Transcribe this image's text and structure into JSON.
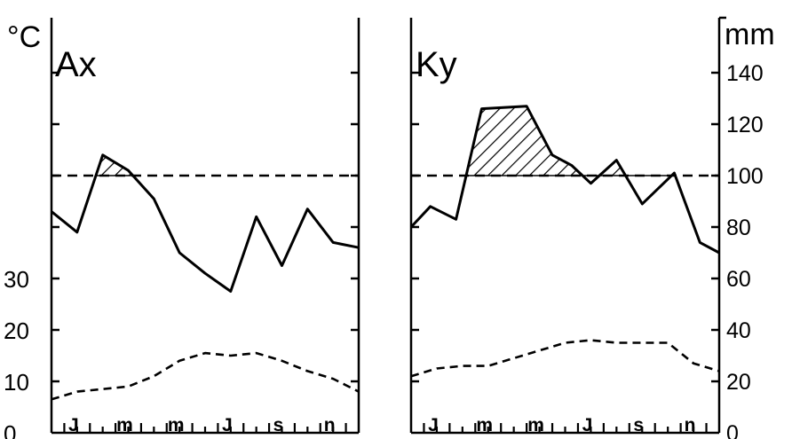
{
  "chart_data": [
    {
      "type": "line",
      "title": "Ax",
      "y_left_unit": "°C",
      "y_left_ticks": [
        "0",
        "10",
        "20",
        "30"
      ],
      "y_left_range": [
        0,
        70
      ],
      "y_right_range": [
        0,
        140
      ],
      "x_ticks": [
        "J",
        "m",
        "m",
        "J",
        "s",
        "n"
      ],
      "x_range": [
        0,
        24
      ],
      "reference_line": 100,
      "series": [
        {
          "style": "solid",
          "axis": "mm",
          "x": [
            0,
            2,
            4,
            6,
            8,
            10,
            12,
            14,
            16,
            18,
            20,
            22,
            24
          ],
          "y": [
            86,
            78,
            108,
            102,
            91,
            70,
            62,
            55,
            84,
            65,
            87,
            74,
            72
          ]
        },
        {
          "style": "dashed",
          "axis": "°C",
          "x": [
            0,
            2,
            4,
            6,
            8,
            10,
            12,
            14,
            16,
            18,
            20,
            22,
            24
          ],
          "y": [
            6.5,
            8,
            8.5,
            9,
            11,
            14,
            15.5,
            15,
            15.5,
            14,
            12,
            10.5,
            8
          ]
        }
      ]
    },
    {
      "type": "line",
      "title": "Ky",
      "y_right_unit": "mm",
      "y_right_ticks": [
        "0",
        "20",
        "40",
        "60",
        "80",
        "100",
        "120",
        "140"
      ],
      "y_left_range": [
        0,
        70
      ],
      "y_right_range": [
        0,
        140
      ],
      "x_ticks": [
        "J",
        "m",
        "m",
        "J",
        "s",
        "n"
      ],
      "x_range": [
        0,
        24
      ],
      "reference_line": 100,
      "series": [
        {
          "style": "solid",
          "axis": "mm",
          "x": [
            0,
            1.5,
            3.5,
            5.5,
            9,
            11,
            12.5,
            14,
            16,
            18,
            20.5,
            22.5,
            24
          ],
          "y": [
            80,
            88,
            83,
            126,
            127,
            108,
            104,
            97,
            106,
            89,
            101,
            74,
            70
          ]
        },
        {
          "style": "dashed",
          "axis": "°C",
          "x": [
            0,
            2,
            4,
            6,
            8,
            10,
            12,
            14,
            16,
            18,
            20,
            22,
            24
          ],
          "y": [
            11,
            12.5,
            13,
            13,
            14.5,
            16,
            17.5,
            18,
            17.5,
            17.5,
            17.5,
            13.5,
            12
          ]
        }
      ]
    }
  ]
}
